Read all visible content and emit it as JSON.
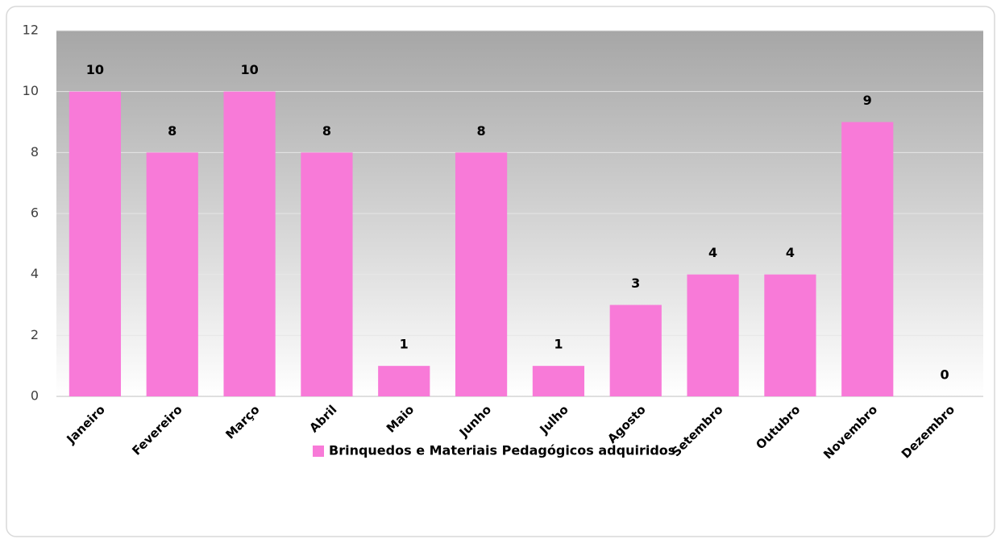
{
  "chart_data": {
    "type": "bar",
    "categories": [
      "Janeiro",
      "Fevereiro",
      "Março",
      "Abril",
      "Maio",
      "Junho",
      "Julho",
      "Agosto",
      "Setembro",
      "Outubro",
      "Novembro",
      "Dezembro"
    ],
    "series": [
      {
        "name": "Brinquedos e Materiais Pedagógicos adquiridos",
        "color": "#f87ad8",
        "values": [
          10,
          8,
          10,
          8,
          1,
          8,
          1,
          3,
          4,
          4,
          9,
          0
        ]
      }
    ],
    "ylim": [
      0,
      12
    ],
    "yticks": [
      0,
      2,
      4,
      6,
      8,
      10,
      12
    ],
    "grid": true,
    "legend": "bottom"
  }
}
